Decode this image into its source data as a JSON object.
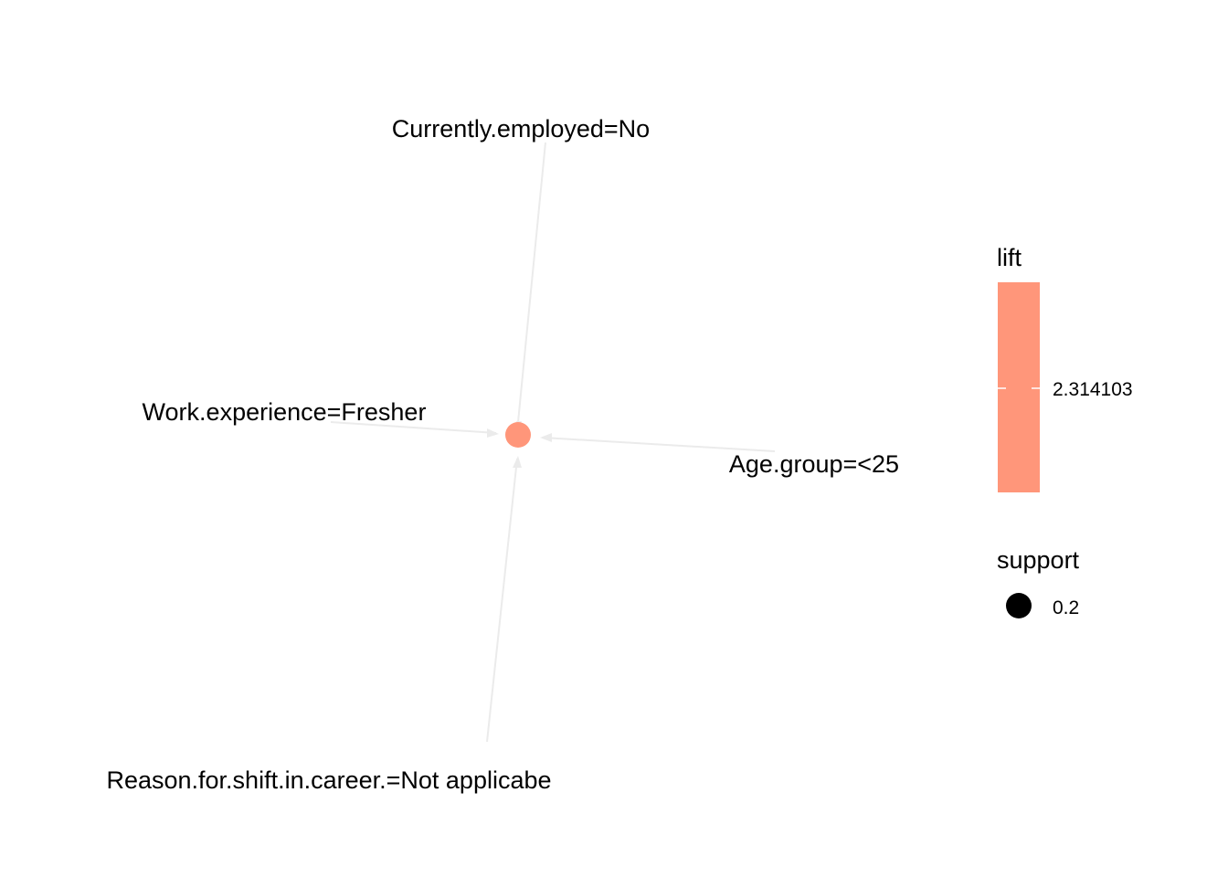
{
  "graph": {
    "rule_node": {
      "lift": 2.314103,
      "support": 0.2,
      "color": "#FF967A"
    },
    "items": [
      {
        "id": "currently-employed",
        "label": "Currently.employed=No"
      },
      {
        "id": "work-experience",
        "label": "Work.experience=Fresher"
      },
      {
        "id": "age-group",
        "label": "Age.group=<25"
      },
      {
        "id": "reason-for-shift",
        "label": "Reason.for.shift.in.career.=Not applicabe"
      }
    ],
    "edge_color": "#EBEBEB"
  },
  "legend": {
    "lift": {
      "title": "lift",
      "value_label": "2.314103",
      "color": "#FF967A"
    },
    "support": {
      "title": "support",
      "value_label": "0.2",
      "color": "#000000"
    }
  }
}
